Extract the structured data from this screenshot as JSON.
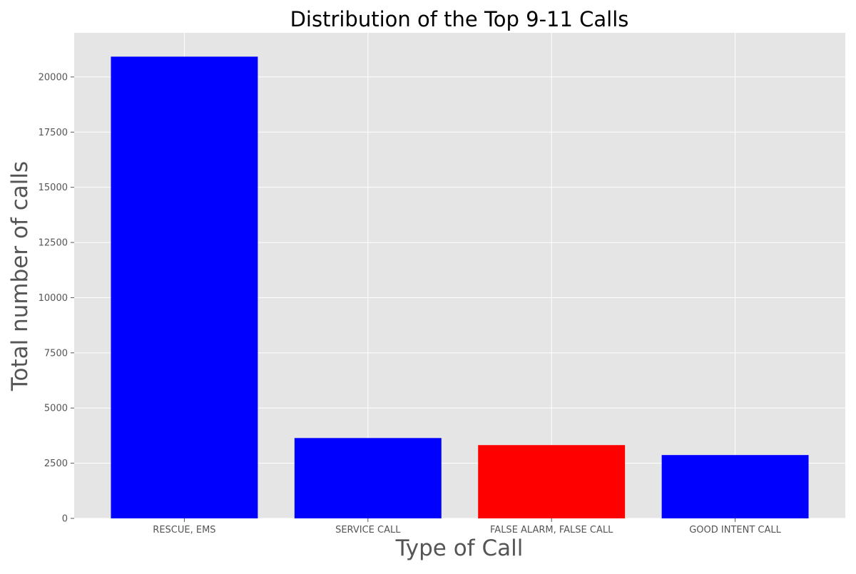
{
  "chart_data": {
    "type": "bar",
    "title": "Distribution of the Top 9-11 Calls",
    "xlabel": "Type of Call",
    "ylabel": "Total number of calls",
    "categories": [
      "RESCUE, EMS",
      "SERVICE CALL",
      "FALSE ALARM, FALSE CALL",
      "GOOD INTENT CALL"
    ],
    "values": [
      20920,
      3640,
      3320,
      2870
    ],
    "bar_colors": [
      "#0000ff",
      "#0000ff",
      "#ff0000",
      "#0000ff"
    ],
    "ylim": [
      0,
      22000
    ],
    "yticks": [
      0,
      2500,
      5000,
      7500,
      10000,
      12500,
      15000,
      17500,
      20000
    ],
    "ytick_labels": [
      "0",
      "2500",
      "5000",
      "7500",
      "10000",
      "12500",
      "15000",
      "17500",
      "20000"
    ],
    "grid": true,
    "style": {
      "plot_background": "#e5e5e5",
      "grid_color": "#ffffff",
      "tick_color": "#555555"
    }
  }
}
